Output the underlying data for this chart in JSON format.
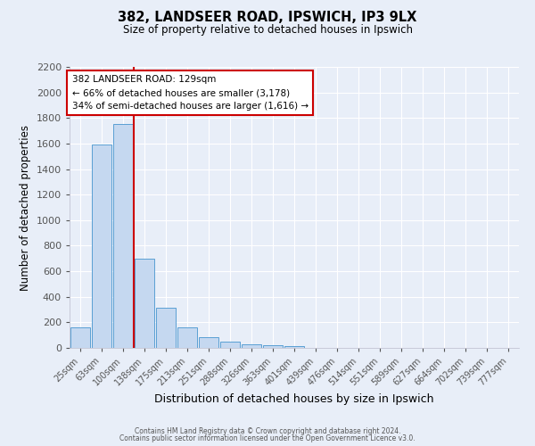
{
  "title": "382, LANDSEER ROAD, IPSWICH, IP3 9LX",
  "subtitle": "Size of property relative to detached houses in Ipswich",
  "xlabel": "Distribution of detached houses by size in Ipswich",
  "ylabel": "Number of detached properties",
  "bin_labels": [
    "25sqm",
    "63sqm",
    "100sqm",
    "138sqm",
    "175sqm",
    "213sqm",
    "251sqm",
    "288sqm",
    "326sqm",
    "363sqm",
    "401sqm",
    "439sqm",
    "476sqm",
    "514sqm",
    "551sqm",
    "589sqm",
    "627sqm",
    "664sqm",
    "702sqm",
    "739sqm",
    "777sqm"
  ],
  "bar_heights": [
    160,
    1590,
    1750,
    700,
    315,
    160,
    85,
    48,
    25,
    18,
    12,
    0,
    0,
    0,
    0,
    0,
    0,
    0,
    0,
    0,
    0
  ],
  "bar_color": "#c5d8f0",
  "bar_edge_color": "#5a9fd4",
  "vline_position": 2.5,
  "property_line_label": "382 LANDSEER ROAD: 129sqm",
  "annotation_line1": "← 66% of detached houses are smaller (3,178)",
  "annotation_line2": "34% of semi-detached houses are larger (1,616) →",
  "annotation_box_color": "#ffffff",
  "annotation_box_edge_color": "#cc0000",
  "vline_color": "#cc0000",
  "ylim": [
    0,
    2200
  ],
  "yticks": [
    0,
    200,
    400,
    600,
    800,
    1000,
    1200,
    1400,
    1600,
    1800,
    2000,
    2200
  ],
  "bg_color": "#e8eef8",
  "grid_color": "#ffffff",
  "footer1": "Contains HM Land Registry data © Crown copyright and database right 2024.",
  "footer2": "Contains public sector information licensed under the Open Government Licence v3.0."
}
